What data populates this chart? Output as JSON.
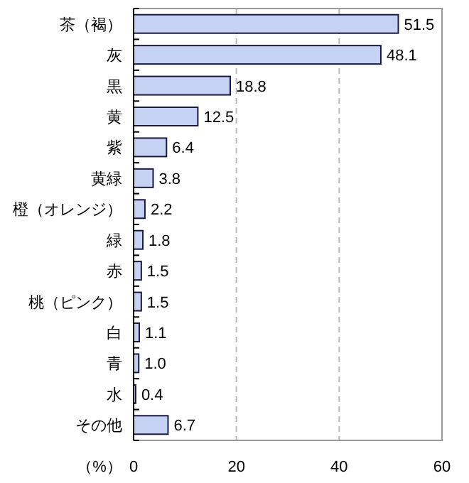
{
  "chart_data": {
    "type": "bar",
    "orientation": "horizontal",
    "categories": [
      "茶（褐）",
      "灰",
      "黒",
      "黄",
      "紫",
      "黄緑",
      "橙（オレンジ）",
      "緑",
      "赤",
      "桃（ピンク）",
      "白",
      "青",
      "水",
      "その他"
    ],
    "values": [
      51.5,
      48.1,
      18.8,
      12.5,
      6.4,
      3.8,
      2.2,
      1.8,
      1.5,
      1.5,
      1.1,
      1.0,
      0.4,
      6.7
    ],
    "value_labels": [
      "51.5",
      "48.1",
      "18.8",
      "12.5",
      "6.4",
      "3.8",
      "2.2",
      "1.8",
      "1.5",
      "1.5",
      "1.1",
      "1.0",
      "0.4",
      "6.7"
    ],
    "color": "#c6d2f4",
    "xlabel": "（%）",
    "xlim": [
      0,
      60
    ],
    "xticks": [
      0,
      20,
      40,
      60
    ],
    "grid": "x"
  }
}
